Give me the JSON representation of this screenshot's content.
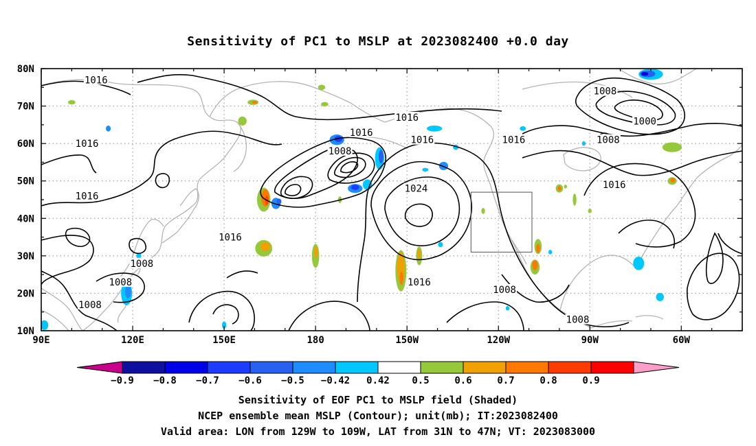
{
  "title": "Sensitivity of PC1 to MSLP at 2023082400 +0.0 day",
  "map": {
    "lat_labels": [
      "80N",
      "70N",
      "60N",
      "50N",
      "40N",
      "30N",
      "20N",
      "10N"
    ],
    "lon_labels": [
      "90E",
      "120E",
      "150E",
      "180",
      "150W",
      "120W",
      "90W",
      "60W"
    ],
    "contour_labels": [
      {
        "text": "1016",
        "lon": 108,
        "lat": 77
      },
      {
        "text": "1016",
        "lon": -150,
        "lat": 67
      },
      {
        "text": "1016",
        "lon": -165,
        "lat": 63
      },
      {
        "text": "1016",
        "lon": -145,
        "lat": 61
      },
      {
        "text": "1016",
        "lon": -115,
        "lat": 61
      },
      {
        "text": "1016",
        "lon": 105,
        "lat": 60
      },
      {
        "text": "1008",
        "lon": -172,
        "lat": 58
      },
      {
        "text": "1008",
        "lon": -85,
        "lat": 74
      },
      {
        "text": "1008",
        "lon": -84,
        "lat": 61
      },
      {
        "text": "1000",
        "lon": -72,
        "lat": 66
      },
      {
        "text": "1024",
        "lon": -147,
        "lat": 48
      },
      {
        "text": "1016",
        "lon": 105,
        "lat": 46
      },
      {
        "text": "1016",
        "lon": -82,
        "lat": 49
      },
      {
        "text": "1016",
        "lon": 152,
        "lat": 35
      },
      {
        "text": "1008",
        "lon": 123,
        "lat": 28
      },
      {
        "text": "1008",
        "lon": 116,
        "lat": 23
      },
      {
        "text": "1008",
        "lon": 106,
        "lat": 17
      },
      {
        "text": "1016",
        "lon": -146,
        "lat": 23
      },
      {
        "text": "1008",
        "lon": -118,
        "lat": 21
      },
      {
        "text": "1008",
        "lon": -94,
        "lat": 13
      }
    ],
    "valid_box": {
      "lon_w": -129,
      "lon_e": -109,
      "lat_s": 31,
      "lat_n": 47
    },
    "colors": {
      "frame": "#000000",
      "grid": "#a0a0a0",
      "coast": "#b4b4b4",
      "contour": "#000000",
      "neg_09": "#1010a0",
      "neg_08": "#0000e0",
      "neg_07": "#1e3cff",
      "neg_06": "#2860f0",
      "neg_05": "#1e8cff",
      "neg_042": "#00c8ff",
      "pos_042": "#96c83c",
      "pos_05": "#f0a000",
      "pos_06": "#ff7800",
      "pos_07": "#ff4a00",
      "pos_08": "#ff0000"
    }
  },
  "colorbar": {
    "labels": [
      "−0.9",
      "−0.8",
      "−0.7",
      "−0.6",
      "−0.5",
      "−0.42",
      "0.42",
      "0.5",
      "0.6",
      "0.7",
      "0.8",
      "0.9"
    ],
    "colors": [
      "#1010a0",
      "#0000e6",
      "#1e3cff",
      "#2860f0",
      "#1e8cff",
      "#00c8ff",
      "#ffffff",
      "#96c83c",
      "#f0a000",
      "#ff7800",
      "#ff3c00",
      "#ff0000"
    ],
    "end_left_color": "#c8008c",
    "end_right_color": "#ff9ec8"
  },
  "captions": {
    "line1": "Sensitivity of EOF PC1 to MSLP field (Shaded)",
    "line2": "NCEP ensemble mean MSLP (Contour); unit(mb); IT:2023082400",
    "line3": "Valid area: LON from 129W to 109W, LAT from 31N to 47N; VT: 2023083000"
  }
}
